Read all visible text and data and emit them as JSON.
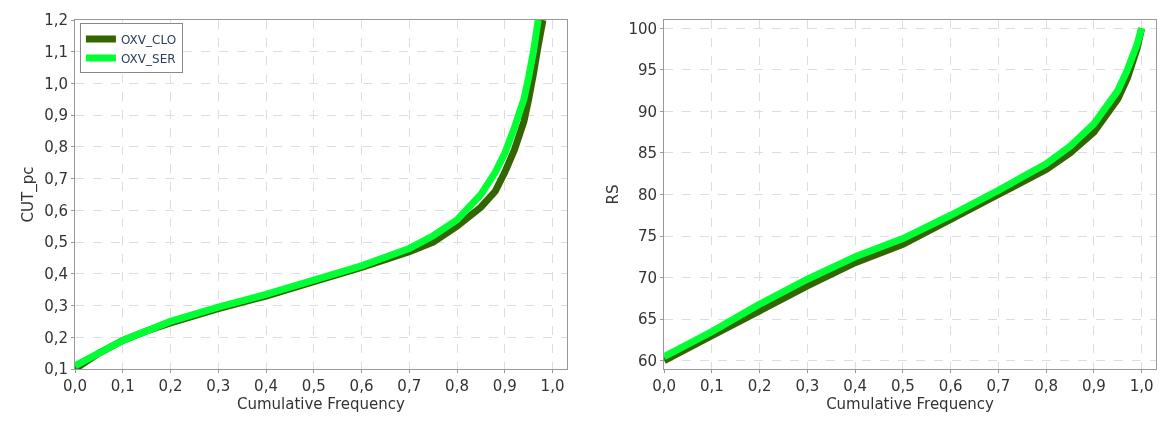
{
  "chart_data": [
    {
      "type": "line",
      "xlabel": "Cumulative Frequency",
      "ylabel": "CUT_pc",
      "legend": "top left",
      "grid": true,
      "marker": "none",
      "line_style": "solid",
      "xlim": [
        0,
        1.03
      ],
      "ylim": [
        0.1,
        1.2
      ],
      "xticks": [
        {
          "value": 0,
          "label": "0,0"
        },
        {
          "value": 0.1,
          "label": "0,1"
        },
        {
          "value": 0.2,
          "label": "0,2"
        },
        {
          "value": 0.3,
          "label": "0,3"
        },
        {
          "value": 0.4,
          "label": "0,4"
        },
        {
          "value": 0.5,
          "label": "0,5"
        },
        {
          "value": 0.6,
          "label": "0,6"
        },
        {
          "value": 0.7,
          "label": "0,7"
        },
        {
          "value": 0.8,
          "label": "0,8"
        },
        {
          "value": 0.9,
          "label": "0,9"
        },
        {
          "value": 1.0,
          "label": "1,0"
        }
      ],
      "yticks": [
        {
          "value": 0.1,
          "label": "0,1"
        },
        {
          "value": 0.2,
          "label": "0,2"
        },
        {
          "value": 0.3,
          "label": "0,3"
        },
        {
          "value": 0.4,
          "label": "0,4"
        },
        {
          "value": 0.5,
          "label": "0,5"
        },
        {
          "value": 0.6,
          "label": "0,6"
        },
        {
          "value": 0.7,
          "label": "0,7"
        },
        {
          "value": 0.8,
          "label": "0,8"
        },
        {
          "value": 0.9,
          "label": "0,9"
        },
        {
          "value": 1.0,
          "label": "1,0"
        },
        {
          "value": 1.1,
          "label": "1,1"
        },
        {
          "value": 1.2,
          "label": "1,2"
        }
      ],
      "series": [
        {
          "name": "OXV_CLO",
          "color": "#336600",
          "x": [
            0,
            0.05,
            0.1,
            0.15,
            0.2,
            0.3,
            0.4,
            0.5,
            0.6,
            0.7,
            0.75,
            0.8,
            0.85,
            0.88,
            0.9,
            0.92,
            0.94,
            0.95,
            0.96,
            0.97,
            0.98
          ],
          "values": [
            0.1,
            0.15,
            0.19,
            0.22,
            0.245,
            0.29,
            0.33,
            0.375,
            0.42,
            0.47,
            0.5,
            0.55,
            0.61,
            0.66,
            0.72,
            0.79,
            0.88,
            0.95,
            1.03,
            1.12,
            1.2
          ]
        },
        {
          "name": "OXV_SER",
          "color": "#00ff33",
          "x": [
            0,
            0.05,
            0.1,
            0.2,
            0.3,
            0.4,
            0.5,
            0.6,
            0.7,
            0.75,
            0.8,
            0.85,
            0.88,
            0.9,
            0.92,
            0.94,
            0.95,
            0.96,
            0.97
          ],
          "values": [
            0.11,
            0.15,
            0.19,
            0.25,
            0.295,
            0.335,
            0.38,
            0.425,
            0.48,
            0.52,
            0.57,
            0.65,
            0.72,
            0.78,
            0.86,
            0.95,
            1.02,
            1.1,
            1.2
          ]
        }
      ]
    },
    {
      "type": "line",
      "xlabel": "Cumulative Frequency",
      "ylabel": "RS",
      "grid": true,
      "marker": "none",
      "line_style": "solid",
      "xlim": [
        0,
        1.03
      ],
      "ylim": [
        59,
        101
      ],
      "xticks": [
        {
          "value": 0,
          "label": "0,0"
        },
        {
          "value": 0.1,
          "label": "0,1"
        },
        {
          "value": 0.2,
          "label": "0,2"
        },
        {
          "value": 0.3,
          "label": "0,3"
        },
        {
          "value": 0.4,
          "label": "0,4"
        },
        {
          "value": 0.5,
          "label": "0,5"
        },
        {
          "value": 0.6,
          "label": "0,6"
        },
        {
          "value": 0.7,
          "label": "0,7"
        },
        {
          "value": 0.8,
          "label": "0,8"
        },
        {
          "value": 0.9,
          "label": "0,9"
        },
        {
          "value": 1.0,
          "label": "1,0"
        }
      ],
      "yticks": [
        60,
        65,
        70,
        75,
        80,
        85,
        90,
        95,
        100
      ],
      "series": [
        {
          "color": "#336600",
          "x": [
            0,
            0.1,
            0.2,
            0.3,
            0.4,
            0.5,
            0.6,
            0.7,
            0.8,
            0.85,
            0.9,
            0.95,
            0.97,
            0.99,
            1.0
          ],
          "values": [
            60,
            63,
            66,
            69,
            71.8,
            74,
            77,
            80,
            83,
            85,
            87.5,
            91.5,
            94,
            97.5,
            100
          ]
        },
        {
          "color": "#00ff33",
          "x": [
            0,
            0.1,
            0.2,
            0.3,
            0.4,
            0.5,
            0.6,
            0.7,
            0.8,
            0.85,
            0.9,
            0.95,
            0.97,
            0.99,
            1.0
          ],
          "values": [
            60.5,
            63.5,
            66.8,
            69.8,
            72.5,
            74.7,
            77.5,
            80.5,
            83.7,
            85.8,
            88.5,
            92.5,
            95,
            98,
            100
          ]
        }
      ]
    }
  ]
}
